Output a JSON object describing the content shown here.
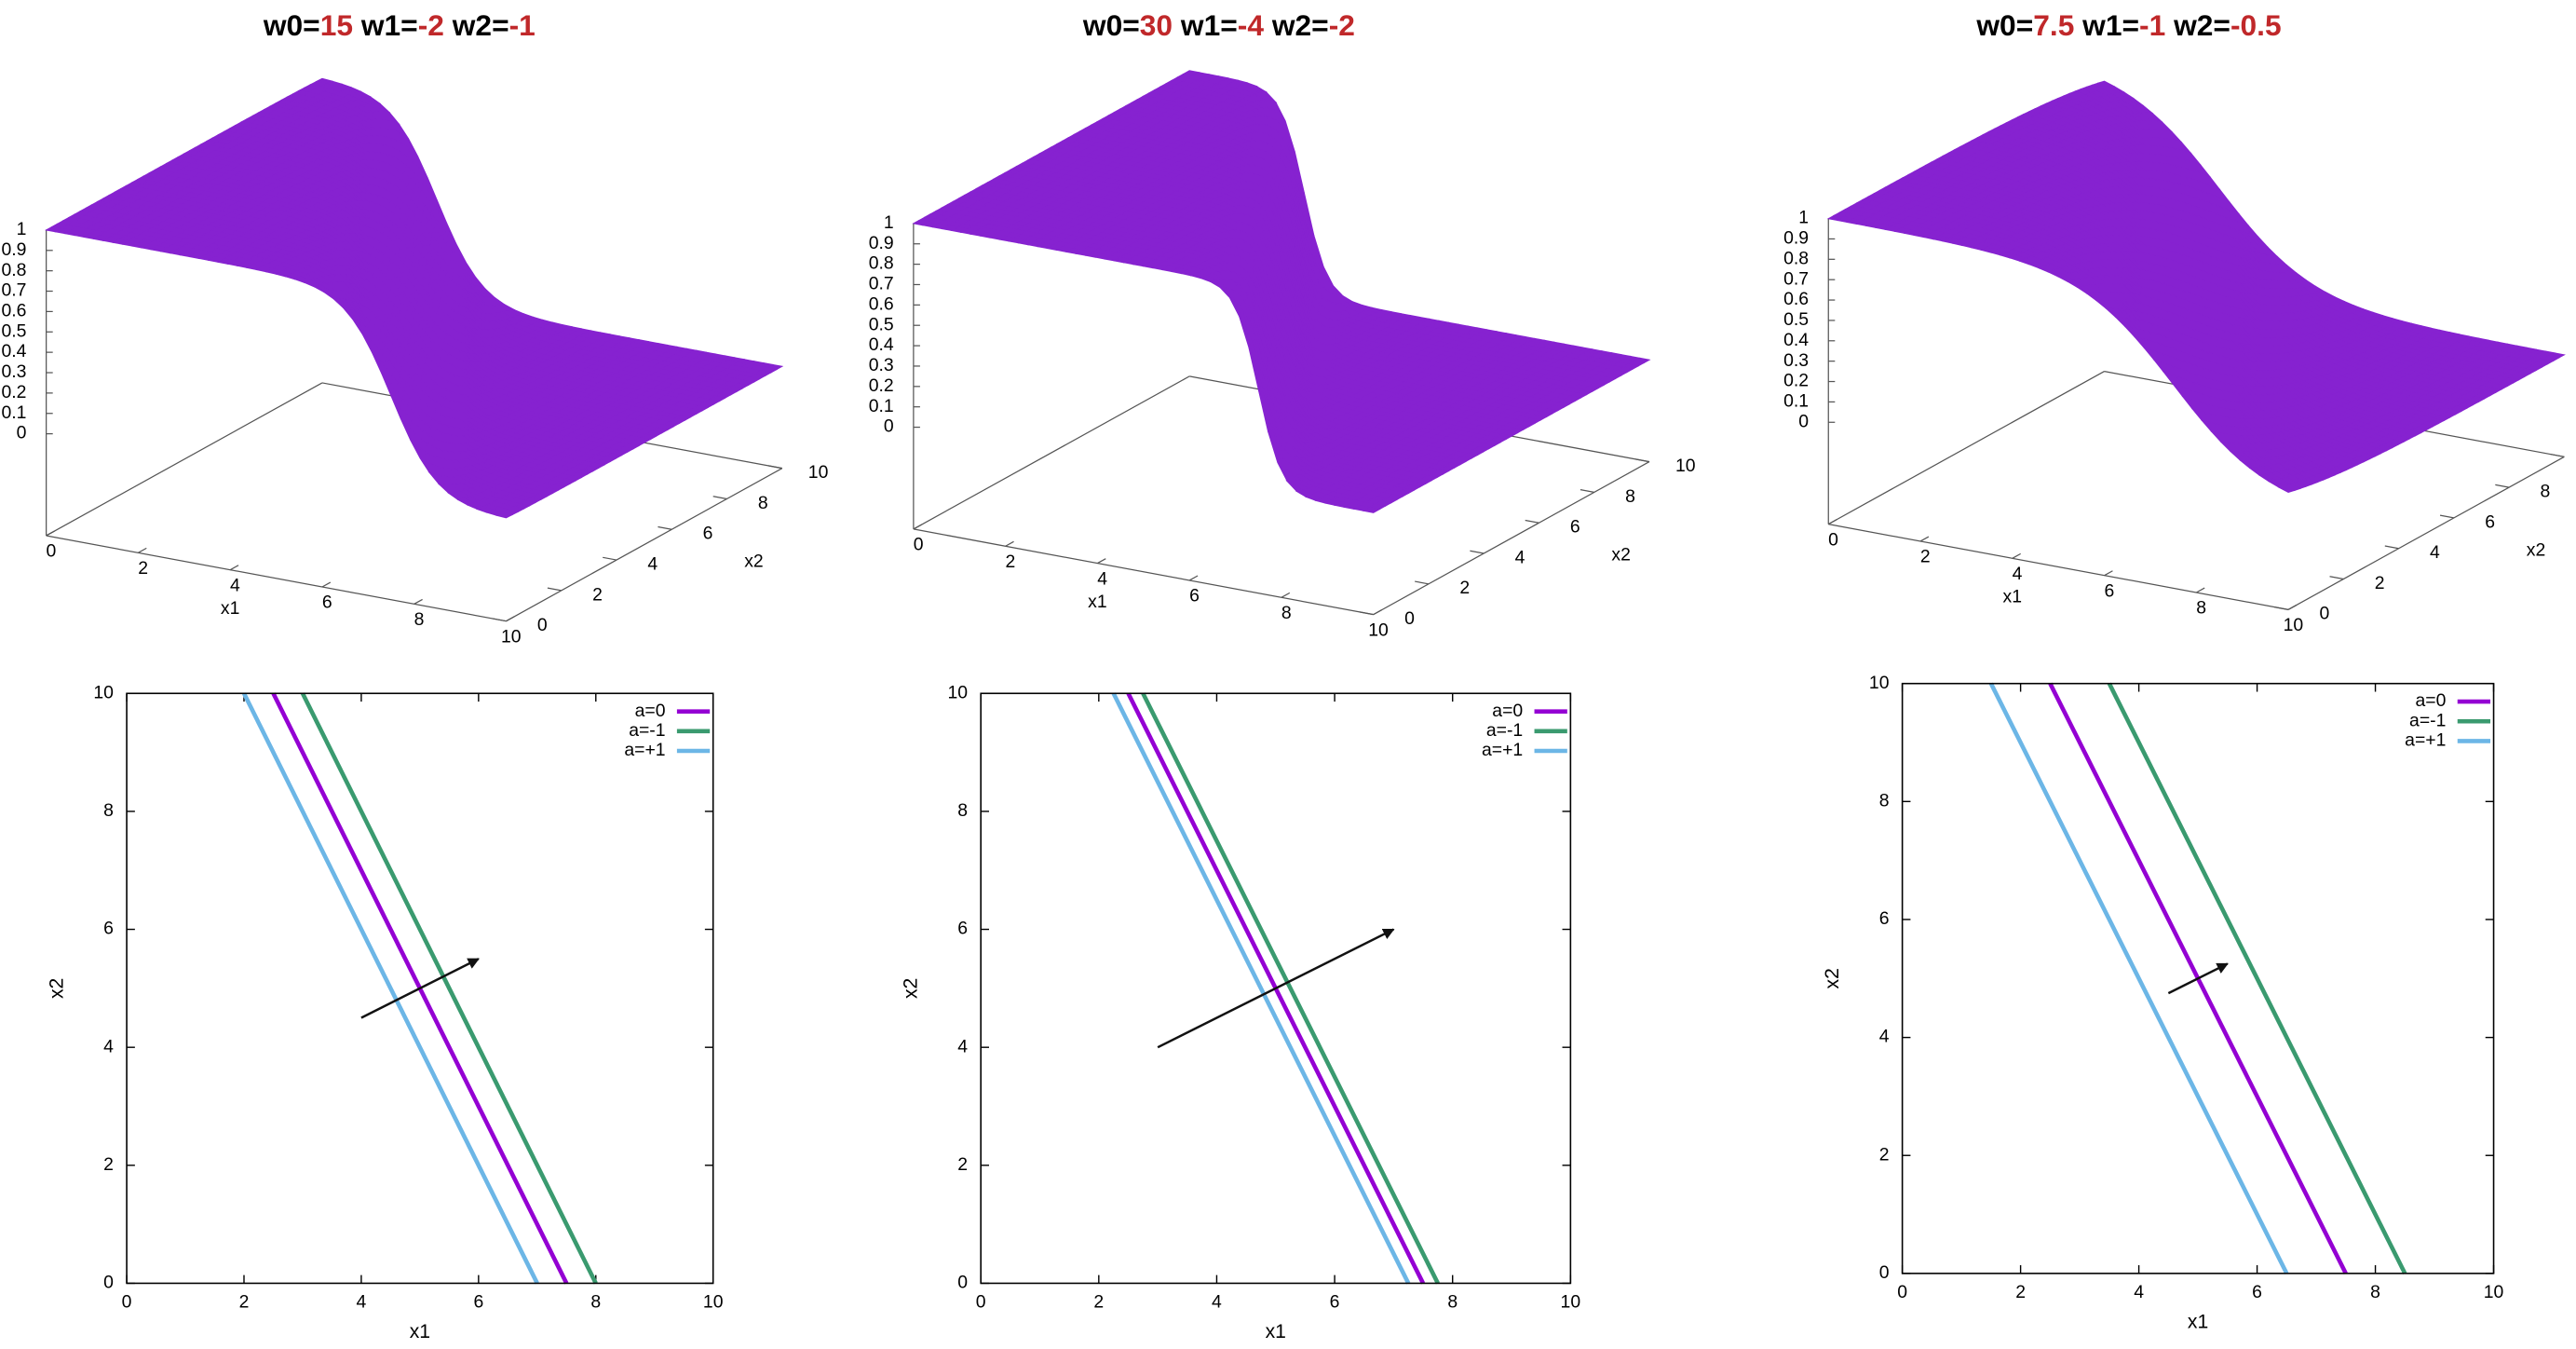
{
  "chart_data": [
    {
      "type": "surface",
      "title": [
        {
          "label": "w0=",
          "value": 15
        },
        {
          "label": "w1=",
          "value": -2
        },
        {
          "label": "w2=",
          "value": -1
        }
      ],
      "title_value_color": "#c0282a",
      "xlabel": "x1",
      "ylabel": "x2",
      "xlim": [
        0,
        10
      ],
      "ylim": [
        0,
        10
      ],
      "zlim": [
        0,
        1
      ],
      "xticks": [
        0,
        2,
        4,
        6,
        8,
        10
      ],
      "yticks": [
        0,
        2,
        4,
        6,
        8,
        10
      ],
      "zticks": [
        0,
        0.1,
        0.2,
        0.3,
        0.4,
        0.5,
        0.6,
        0.7,
        0.8,
        0.9,
        1
      ],
      "color": "#8622d0"
    },
    {
      "type": "surface",
      "title": [
        {
          "label": "w0=",
          "value": 30
        },
        {
          "label": "w1=",
          "value": -4
        },
        {
          "label": "w2=",
          "value": -2
        }
      ],
      "title_value_color": "#c0282a",
      "xlabel": "x1",
      "ylabel": "x2",
      "xlim": [
        0,
        10
      ],
      "ylim": [
        0,
        10
      ],
      "zlim": [
        0,
        1
      ],
      "xticks": [
        0,
        2,
        4,
        6,
        8,
        10
      ],
      "yticks": [
        0,
        2,
        4,
        6,
        8,
        10
      ],
      "zticks": [
        0,
        0.1,
        0.2,
        0.3,
        0.4,
        0.5,
        0.6,
        0.7,
        0.8,
        0.9,
        1
      ],
      "color": "#8622d0"
    },
    {
      "type": "surface",
      "title": [
        {
          "label": "w0=",
          "value": 7.5
        },
        {
          "label": "w1=",
          "value": -1
        },
        {
          "label": "w2=",
          "value": -0.5
        }
      ],
      "title_value_color": "#c0282a",
      "xlabel": "x1",
      "ylabel": "x2",
      "xlim": [
        0,
        10
      ],
      "ylim": [
        0,
        10
      ],
      "zlim": [
        0,
        1
      ],
      "xticks": [
        0,
        2,
        4,
        6,
        8,
        10
      ],
      "yticks": [
        0,
        2,
        4,
        6,
        8,
        10
      ],
      "zticks": [
        0,
        0.1,
        0.2,
        0.3,
        0.4,
        0.5,
        0.6,
        0.7,
        0.8,
        0.9,
        1
      ],
      "color": "#8622d0"
    },
    {
      "type": "line",
      "xlabel": "x1",
      "ylabel": "x2",
      "xlim": [
        0,
        10
      ],
      "ylim": [
        0,
        10
      ],
      "xticks": [
        0,
        2,
        4,
        6,
        8,
        10
      ],
      "yticks": [
        0,
        2,
        4,
        6,
        8,
        10
      ],
      "legend": "top-right",
      "series": [
        {
          "name": "a=0",
          "color": "#9400d3",
          "x": [
            2.5,
            7.5
          ],
          "values": [
            10,
            0
          ]
        },
        {
          "name": "a=-1",
          "color": "#3a9a6f",
          "x": [
            3,
            8
          ],
          "values": [
            10,
            0
          ]
        },
        {
          "name": "a=+1",
          "color": "#6cb6e6",
          "x": [
            2,
            7
          ],
          "values": [
            10,
            0
          ]
        }
      ],
      "arrow": {
        "x": [
          4,
          6
        ],
        "y": [
          4.5,
          5.5
        ],
        "color": "#111111"
      }
    },
    {
      "type": "line",
      "xlabel": "x1",
      "ylabel": "x2",
      "xlim": [
        0,
        10
      ],
      "ylim": [
        0,
        10
      ],
      "xticks": [
        0,
        2,
        4,
        6,
        8,
        10
      ],
      "yticks": [
        0,
        2,
        4,
        6,
        8,
        10
      ],
      "legend": "top-right",
      "series": [
        {
          "name": "a=0",
          "color": "#9400d3",
          "x": [
            2.5,
            7.5
          ],
          "values": [
            10,
            0
          ]
        },
        {
          "name": "a=-1",
          "color": "#3a9a6f",
          "x": [
            2.75,
            7.75
          ],
          "values": [
            10,
            0
          ]
        },
        {
          "name": "a=+1",
          "color": "#6cb6e6",
          "x": [
            2.25,
            7.25
          ],
          "values": [
            10,
            0
          ]
        }
      ],
      "arrow": {
        "x": [
          3,
          7
        ],
        "y": [
          4,
          6
        ],
        "color": "#111111"
      }
    },
    {
      "type": "line",
      "xlabel": "x1",
      "ylabel": "x2",
      "xlim": [
        0,
        10
      ],
      "ylim": [
        0,
        10
      ],
      "xticks": [
        0,
        2,
        4,
        6,
        8,
        10
      ],
      "yticks": [
        0,
        2,
        4,
        6,
        8,
        10
      ],
      "legend": "top-right",
      "series": [
        {
          "name": "a=0",
          "color": "#9400d3",
          "x": [
            2.5,
            7.5
          ],
          "values": [
            10,
            0
          ]
        },
        {
          "name": "a=-1",
          "color": "#3a9a6f",
          "x": [
            3.5,
            8.5
          ],
          "values": [
            10,
            0
          ]
        },
        {
          "name": "a=+1",
          "color": "#6cb6e6",
          "x": [
            1.5,
            6.5
          ],
          "values": [
            10,
            0
          ]
        }
      ],
      "arrow": {
        "x": [
          4.5,
          5.5
        ],
        "y": [
          4.75,
          5.25
        ],
        "color": "#111111"
      }
    }
  ]
}
